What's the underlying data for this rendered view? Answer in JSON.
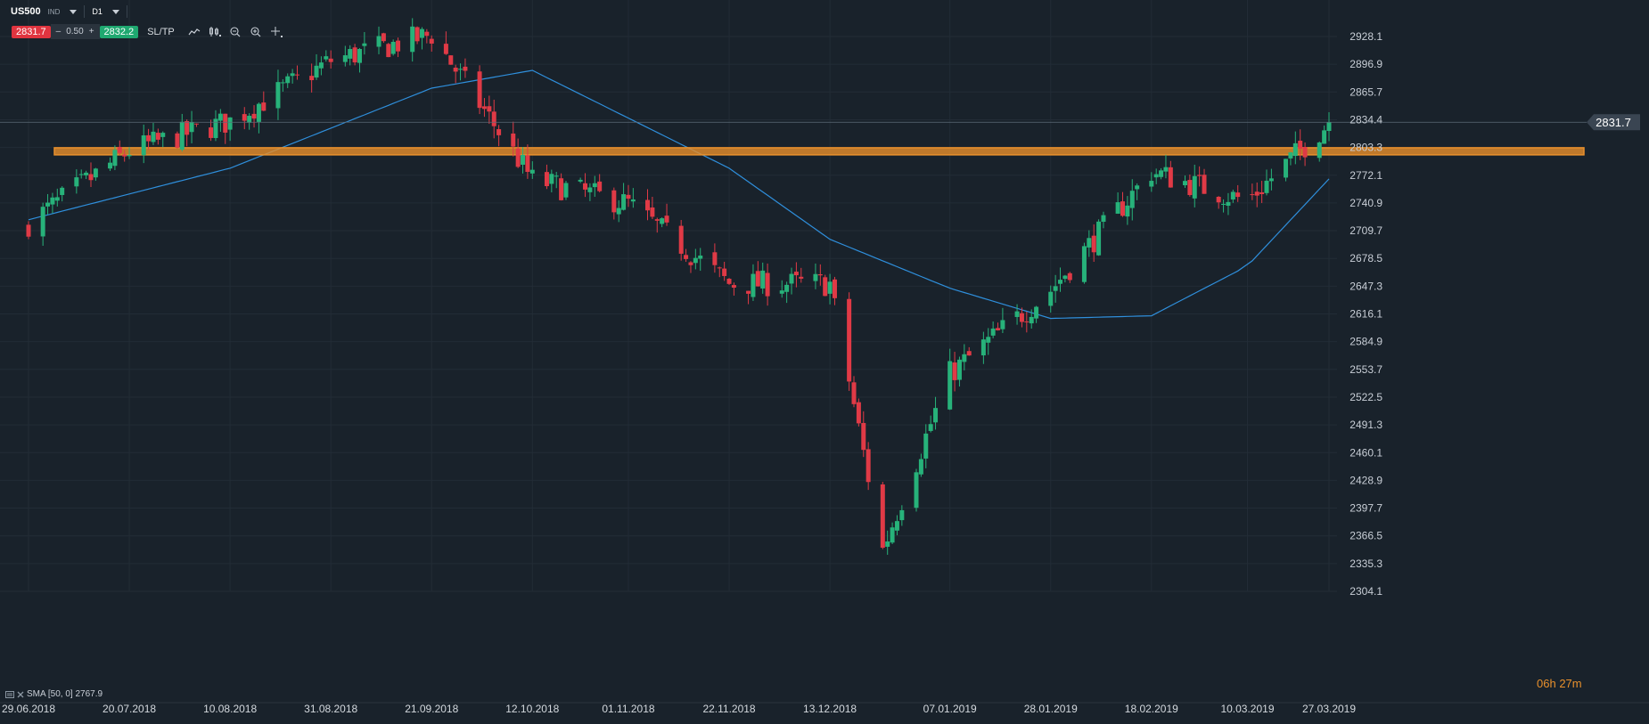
{
  "toolbar": {
    "symbol": "US500",
    "instrument_tag": "IND",
    "timeframe": "D1",
    "sell_price": "2831.7",
    "spread_minus": "–",
    "spread_value": "0.50",
    "spread_plus": "+",
    "buy_price": "2832.2",
    "sltp_label": "SL/TP",
    "tools": [
      "line-chart-icon",
      "candlestick-icon",
      "zoom-out-icon",
      "zoom-in-icon",
      "crosshair-icon"
    ]
  },
  "indicator": {
    "label": "SMA [50, 0] 2767.9"
  },
  "countdown": {
    "hours": "06",
    "h": "h",
    "minutes": "27",
    "m": "m"
  },
  "colors": {
    "background": "#19222b",
    "bull": "#27b27a",
    "bear": "#e03a46",
    "sma": "#2f8fdc",
    "zone": "#e8902c",
    "price_line": "#5d6b78"
  },
  "chart_data": {
    "type": "candlestick",
    "timeframe": "D1",
    "ylim": [
      2304.1,
      2944.0
    ],
    "y_ticks": [
      "2928.1",
      "2896.9",
      "2865.7",
      "2834.4",
      "2803.3",
      "2772.1",
      "2740.9",
      "2709.7",
      "2678.5",
      "2647.3",
      "2616.1",
      "2584.9",
      "2553.7",
      "2522.5",
      "2491.3",
      "2460.1",
      "2428.9",
      "2397.7",
      "2366.5",
      "2335.3",
      "2304.1"
    ],
    "x_ticks": [
      "29.06.2018",
      "20.07.2018",
      "10.08.2018",
      "31.08.2018",
      "21.09.2018",
      "12.10.2018",
      "01.11.2018",
      "22.11.2018",
      "13.12.2018",
      "07.01.2019",
      "28.01.2019",
      "18.02.2019",
      "10.03.2019",
      "27.03.2019"
    ],
    "current_price": "2831.7",
    "resistance_zone": [
      2795,
      2803
    ],
    "anchors": [
      {
        "date": "29.06.2018",
        "close": 2718
      },
      {
        "date": "20.07.2018",
        "close": 2800
      },
      {
        "date": "10.08.2018",
        "close": 2833
      },
      {
        "date": "31.08.2018",
        "close": 2901
      },
      {
        "date": "21.09.2018",
        "close": 2930
      },
      {
        "date": "12.10.2018",
        "close": 2767
      },
      {
        "date": "01.11.2018",
        "close": 2740
      },
      {
        "date": "22.11.2018",
        "close": 2650
      },
      {
        "date": "13.12.2018",
        "close": 2650
      },
      {
        "date": "24.12.2018",
        "close": 2351
      },
      {
        "date": "07.01.2019",
        "close": 2549
      },
      {
        "date": "28.01.2019",
        "close": 2643
      },
      {
        "date": "18.02.2019",
        "close": 2776
      },
      {
        "date": "10.03.2019",
        "close": 2743
      },
      {
        "date": "27.03.2019",
        "close": 2831.7
      }
    ],
    "sma": {
      "name": "SMA [50, 0]",
      "last": 2767.9,
      "points": [
        {
          "date": "29.06.2018",
          "value": 2722
        },
        {
          "date": "10.08.2018",
          "value": 2780
        },
        {
          "date": "21.09.2018",
          "value": 2870
        },
        {
          "date": "12.10.2018",
          "value": 2890
        },
        {
          "date": "22.11.2018",
          "value": 2780
        },
        {
          "date": "13.12.2018",
          "value": 2700
        },
        {
          "date": "07.01.2019",
          "value": 2645
        },
        {
          "date": "28.01.2019",
          "value": 2611
        },
        {
          "date": "18.02.2019",
          "value": 2614
        },
        {
          "date": "10.03.2019",
          "value": 2670
        },
        {
          "date": "27.03.2019",
          "value": 2767.9
        }
      ]
    }
  }
}
